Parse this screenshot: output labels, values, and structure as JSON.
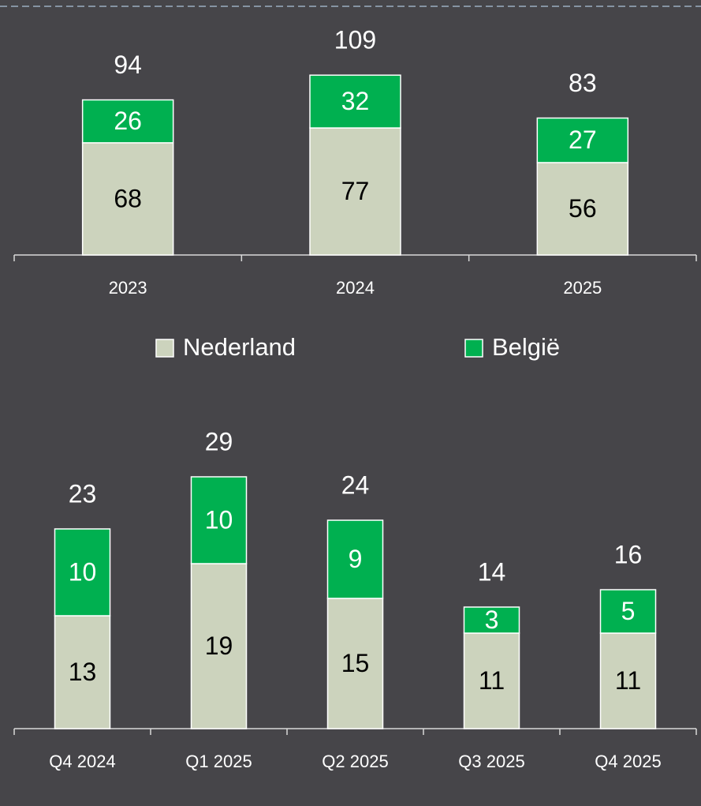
{
  "chart_data": [
    {
      "type": "stacked_bar",
      "categories": [
        "2023",
        "2024",
        "2025"
      ],
      "series": [
        {
          "name": "Nederland",
          "color": "#ccd3bd",
          "values": [
            68,
            77,
            56
          ]
        },
        {
          "name": "België",
          "color": "#00b050",
          "values": [
            26,
            32,
            27
          ]
        }
      ],
      "totals": [
        94,
        109,
        83
      ]
    },
    {
      "type": "stacked_bar",
      "categories": [
        "Q4 2024",
        "Q1 2025",
        "Q2 2025",
        "Q3 2025",
        "Q4 2025"
      ],
      "series": [
        {
          "color": "#ccd3bd",
          "values": [
            13,
            19,
            15,
            11,
            11
          ]
        },
        {
          "color": "#00b050",
          "values": [
            10,
            10,
            9,
            3,
            5
          ]
        }
      ],
      "totals": [
        23,
        29,
        24,
        14,
        16
      ]
    }
  ]
}
